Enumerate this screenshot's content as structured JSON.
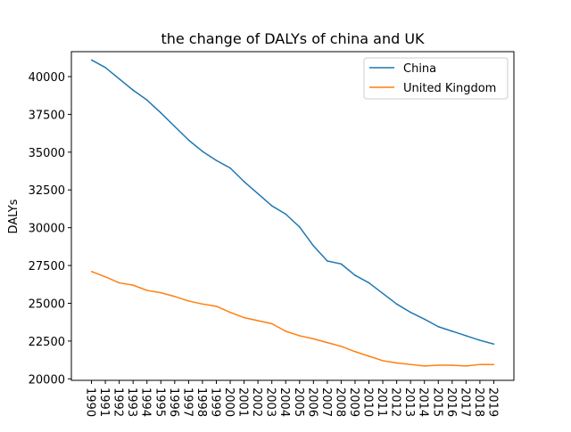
{
  "chart_data": {
    "type": "line",
    "title": "the change of DALYs of china and UK",
    "ylabel": "DALYs",
    "xlabel": "",
    "legend_position": "top-right",
    "grid": false,
    "x": [
      1990,
      1991,
      1992,
      1993,
      1994,
      1995,
      1996,
      1997,
      1998,
      1999,
      2000,
      2001,
      2002,
      2003,
      2004,
      2005,
      2006,
      2007,
      2008,
      2009,
      2010,
      2011,
      2012,
      2013,
      2014,
      2015,
      2016,
      2017,
      2018,
      2019
    ],
    "x_tick_labels": [
      "1990",
      "1991",
      "1992",
      "1993",
      "1994",
      "1995",
      "1996",
      "1997",
      "1998",
      "1999",
      "2000",
      "2001",
      "2002",
      "2003",
      "2004",
      "2005",
      "2006",
      "2007",
      "2008",
      "2009",
      "2010",
      "2011",
      "2012",
      "2013",
      "2014",
      "2015",
      "2016",
      "2017",
      "2018",
      "2019"
    ],
    "y_ticks": [
      20000,
      22500,
      25000,
      27500,
      30000,
      32500,
      35000,
      37500,
      40000
    ],
    "y_tick_labels": [
      "20000",
      "22500",
      "25000",
      "27500",
      "30000",
      "32500",
      "35000",
      "37500",
      "40000"
    ],
    "xlim": [
      1988.55,
      2020.45
    ],
    "ylim": [
      19900,
      41650
    ],
    "series": [
      {
        "name": "China",
        "color": "#1f77b4",
        "values": [
          41100,
          40600,
          39850,
          39100,
          38450,
          37600,
          36700,
          35800,
          35050,
          34450,
          33950,
          33050,
          32250,
          31450,
          30900,
          30050,
          28800,
          27800,
          27600,
          26850,
          26350,
          25650,
          24950,
          24400,
          23950,
          23450,
          23150,
          22850,
          22550,
          22300
        ]
      },
      {
        "name": "United Kingdom",
        "color": "#ff7f0e",
        "values": [
          27100,
          26750,
          26350,
          26200,
          25850,
          25700,
          25450,
          25150,
          24950,
          24800,
          24400,
          24050,
          23850,
          23650,
          23150,
          22850,
          22650,
          22400,
          22150,
          21800,
          21500,
          21200,
          21050,
          20950,
          20850,
          20900,
          20900,
          20850,
          20950,
          20950
        ]
      }
    ]
  }
}
